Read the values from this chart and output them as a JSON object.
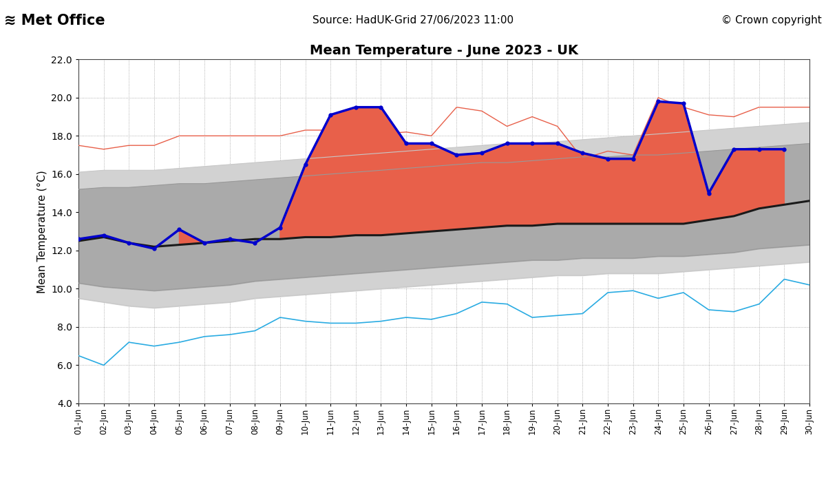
{
  "title": "Mean Temperature - June 2023 - UK",
  "source_text": "Source: HadUK-Grid 27/06/2023 11:00",
  "copyright_text": "© Crown copyright",
  "ylabel": "Mean Temperature (°C)",
  "ylim": [
    4.0,
    22.0
  ],
  "yticks": [
    4.0,
    6.0,
    8.0,
    10.0,
    12.0,
    14.0,
    16.0,
    18.0,
    20.0,
    22.0
  ],
  "days": [
    1,
    2,
    3,
    4,
    5,
    6,
    7,
    8,
    9,
    10,
    11,
    12,
    13,
    14,
    15,
    16,
    17,
    18,
    19,
    20,
    21,
    22,
    23,
    24,
    25,
    26,
    27,
    28,
    29,
    30
  ],
  "mean_1991_2020": [
    12.5,
    12.7,
    12.4,
    12.2,
    12.3,
    12.4,
    12.5,
    12.6,
    12.6,
    12.7,
    12.7,
    12.8,
    12.8,
    12.9,
    13.0,
    13.1,
    13.2,
    13.3,
    13.3,
    13.4,
    13.4,
    13.4,
    13.4,
    13.4,
    13.4,
    13.6,
    13.8,
    14.2,
    14.4,
    14.6
  ],
  "lowest": [
    6.5,
    6.0,
    7.2,
    7.0,
    7.2,
    7.5,
    7.6,
    7.8,
    8.5,
    8.3,
    8.2,
    8.2,
    8.3,
    8.5,
    8.4,
    8.7,
    9.3,
    9.2,
    8.5,
    8.6,
    8.7,
    9.8,
    9.9,
    9.5,
    9.8,
    8.9,
    8.8,
    9.2,
    10.5,
    10.2
  ],
  "p5": [
    9.5,
    9.3,
    9.1,
    9.0,
    9.1,
    9.2,
    9.3,
    9.5,
    9.6,
    9.7,
    9.8,
    9.9,
    10.0,
    10.1,
    10.2,
    10.3,
    10.4,
    10.5,
    10.6,
    10.7,
    10.7,
    10.8,
    10.8,
    10.8,
    10.9,
    11.0,
    11.1,
    11.2,
    11.3,
    11.4
  ],
  "p10": [
    10.3,
    10.1,
    10.0,
    9.9,
    10.0,
    10.1,
    10.2,
    10.4,
    10.5,
    10.6,
    10.7,
    10.8,
    10.9,
    11.0,
    11.1,
    11.2,
    11.3,
    11.4,
    11.5,
    11.5,
    11.6,
    11.6,
    11.6,
    11.7,
    11.7,
    11.8,
    11.9,
    12.1,
    12.2,
    12.3
  ],
  "p90": [
    15.2,
    15.3,
    15.3,
    15.4,
    15.5,
    15.5,
    15.6,
    15.7,
    15.8,
    15.9,
    16.0,
    16.1,
    16.2,
    16.3,
    16.4,
    16.5,
    16.6,
    16.6,
    16.7,
    16.8,
    16.9,
    16.9,
    17.0,
    17.0,
    17.1,
    17.2,
    17.3,
    17.4,
    17.5,
    17.6
  ],
  "p95": [
    16.1,
    16.2,
    16.2,
    16.2,
    16.3,
    16.4,
    16.5,
    16.6,
    16.7,
    16.8,
    16.9,
    17.0,
    17.1,
    17.2,
    17.3,
    17.4,
    17.5,
    17.6,
    17.6,
    17.7,
    17.8,
    17.9,
    18.0,
    18.1,
    18.2,
    18.3,
    18.4,
    18.5,
    18.6,
    18.7
  ],
  "highest": [
    17.5,
    17.3,
    17.5,
    17.5,
    18.0,
    18.0,
    18.0,
    18.0,
    18.0,
    18.3,
    18.3,
    18.0,
    18.1,
    18.2,
    18.0,
    19.5,
    19.3,
    18.5,
    19.0,
    18.5,
    16.8,
    17.2,
    17.0,
    20.0,
    19.5,
    19.1,
    19.0,
    19.5,
    19.5,
    19.5
  ],
  "y2023": [
    12.6,
    12.8,
    12.4,
    12.1,
    13.1,
    12.4,
    12.6,
    12.4,
    13.2,
    16.5,
    19.1,
    19.5,
    19.5,
    17.6,
    17.6,
    17.0,
    17.1,
    17.6,
    17.6,
    17.6,
    17.1,
    16.8,
    16.8,
    19.8,
    19.7,
    15.0,
    17.3,
    17.3,
    17.3,
    null
  ],
  "color_mean": "#1a1a1a",
  "color_lowest": "#29abe2",
  "color_p5_line": "#c8c8c8",
  "color_p10_line": "#999999",
  "color_highest": "#e8604a",
  "color_2023": "#0000cc",
  "fill_p5_p95": "#d2d2d2",
  "fill_p10_p90": "#aaaaaa",
  "fill_orange": "#e8604a",
  "fill_blue": "#336688",
  "bg_color": "#ffffff",
  "grid_color": "#999999",
  "grid_linestyle": ":"
}
